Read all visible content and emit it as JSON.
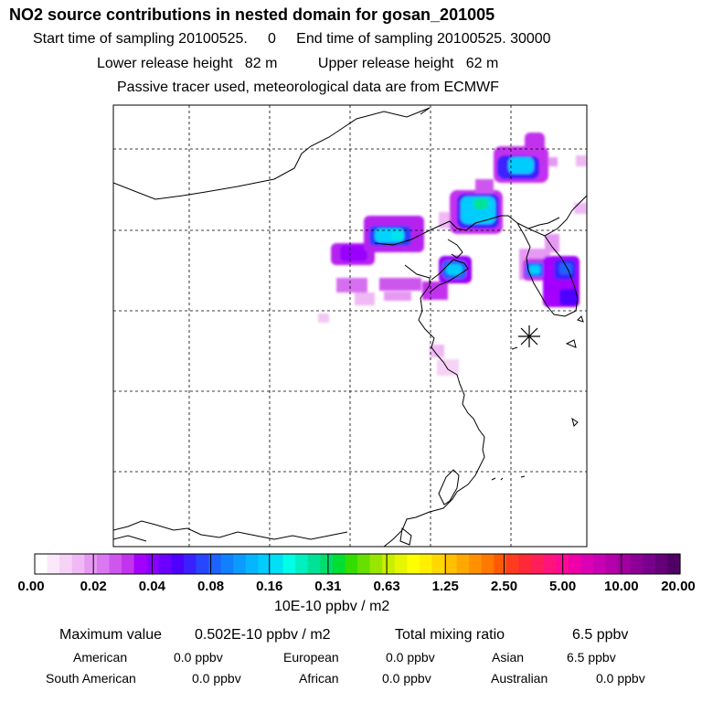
{
  "header": {
    "title": "NO2 source contributions in nested domain for gosan_201005",
    "line1": "Start time of sampling 20100525.     0     End time of sampling 20100525. 30000",
    "line2": "Lower release height   82 m          Upper release height   62 m",
    "line3": "Passive tracer used, meteorological data are from ECMWF"
  },
  "chart_data": {
    "type": "heatmap",
    "title": "NO2 source contributions in nested domain for gosan_201005",
    "colorbar": {
      "unit": "10E-10 ppbv / m2",
      "tick_labels": [
        "0.00",
        "0.02",
        "0.04",
        "0.08",
        "0.16",
        "0.31",
        "0.63",
        "1.25",
        "2.50",
        "5.00",
        "10.00",
        "20.00"
      ],
      "colors": [
        "#ffffff",
        "#fbe8fb",
        "#f6d2f6",
        "#f0b8f4",
        "#e699f3",
        "#da78f1",
        "#ce56ef",
        "#c233ee",
        "#a400ff",
        "#8a00ff",
        "#6c00ff",
        "#4e00ff",
        "#3a20ff",
        "#2646ff",
        "#1c63ff",
        "#1080ff",
        "#0b9bff",
        "#05b6ff",
        "#00ccff",
        "#00e0f5",
        "#00ffe6",
        "#00f0c0",
        "#00e396",
        "#00dd6e",
        "#00dd33",
        "#33dd00",
        "#66e000",
        "#99e600",
        "#c8ee00",
        "#e6f500",
        "#ffff00",
        "#fff000",
        "#ffd800",
        "#ffc000",
        "#ffa800",
        "#ff9000",
        "#ff7800",
        "#ff5a00",
        "#ff3c1e",
        "#ff2838",
        "#ff1e5a",
        "#ff147c",
        "#ff0a96",
        "#f000a8",
        "#dc00b4",
        "#c800b4",
        "#b400aa",
        "#a000a0",
        "#8c0096",
        "#78008c",
        "#640078",
        "#500064"
      ],
      "min": 0.0,
      "max": 20.0
    },
    "receptor_marker": "asterisk",
    "grid": true
  },
  "stats": {
    "max_label": "Maximum value",
    "max_value": "0.502E-10 ppbv / m2",
    "total_label": "Total mixing ratio",
    "total_value": "6.5 ppbv",
    "regions": [
      {
        "name": "American",
        "value": "0.0 ppbv"
      },
      {
        "name": "European",
        "value": "0.0 ppbv"
      },
      {
        "name": "Asian",
        "value": "6.5 ppbv"
      },
      {
        "name": "South American",
        "value": "0.0 ppbv"
      },
      {
        "name": "African",
        "value": "0.0 ppbv"
      },
      {
        "name": "Australian",
        "value": "0.0 ppbv"
      }
    ]
  }
}
